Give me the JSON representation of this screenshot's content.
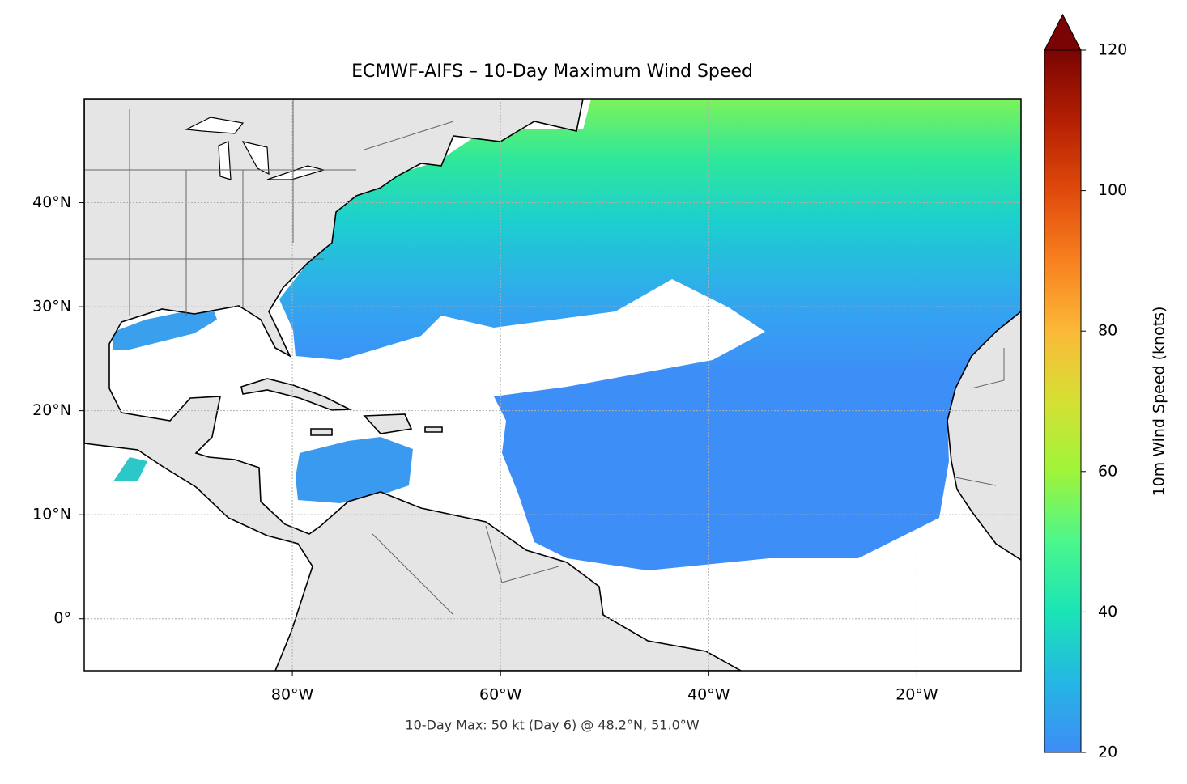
{
  "chart_data": {
    "type": "map",
    "title": "ECMWF-AIFS – 10-Day Maximum Wind Speed",
    "subtitle": "10-Day Max: 50 kt (Day 6) @ 48.2°N, 51.0°W",
    "xlim": [
      -100,
      -10
    ],
    "ylim": [
      -5,
      50
    ],
    "xticks": [
      {
        "value": -80,
        "label": "80°W"
      },
      {
        "value": -60,
        "label": "60°W"
      },
      {
        "value": -40,
        "label": "40°W"
      },
      {
        "value": -20,
        "label": "20°W"
      }
    ],
    "yticks": [
      {
        "value": 0,
        "label": "0°"
      },
      {
        "value": 10,
        "label": "10°N"
      },
      {
        "value": 20,
        "label": "20°N"
      },
      {
        "value": 30,
        "label": "30°N"
      },
      {
        "value": 40,
        "label": "40°N"
      }
    ],
    "grid": true,
    "colorbar": {
      "label": "10m Wind Speed (knots)",
      "lim": [
        20,
        120
      ],
      "ticks": [
        20,
        40,
        60,
        80,
        100,
        120
      ],
      "colormap": "turbo",
      "extend": "max"
    }
  }
}
